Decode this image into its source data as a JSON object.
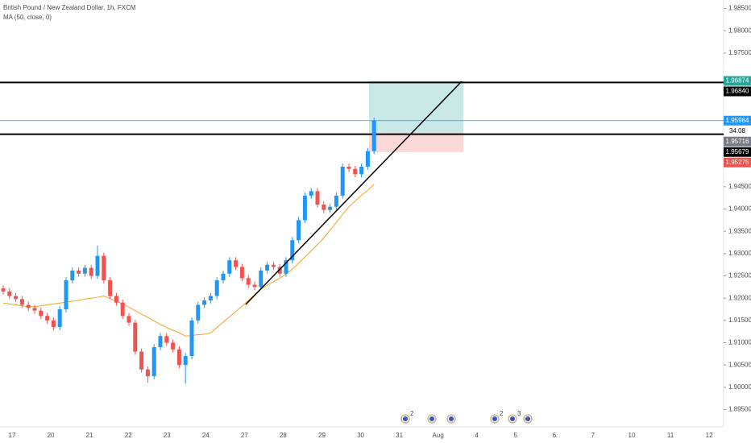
{
  "chart_data": {
    "type": "candlestick",
    "title": "British Pound / New Zealand Dollar, 1h, FXCM",
    "subtitle": "MA (50, close, 0)",
    "up_color": "#2196f3",
    "down_color": "#ef5350",
    "ylim": [
      1.8875,
      1.9869
    ],
    "yticks": [
      {
        "value": 1.985,
        "label": "1.98500"
      },
      {
        "value": 1.98,
        "label": "1.98000"
      },
      {
        "value": 1.975,
        "label": "1.97500"
      },
      {
        "value": 1.945,
        "label": "1.94500"
      },
      {
        "value": 1.94,
        "label": "1.94000"
      },
      {
        "value": 1.935,
        "label": "1.93500"
      },
      {
        "value": 1.93,
        "label": "1.93000"
      },
      {
        "value": 1.925,
        "label": "1.92500"
      },
      {
        "value": 1.92,
        "label": "1.92000"
      },
      {
        "value": 1.915,
        "label": "1.91500"
      },
      {
        "value": 1.91,
        "label": "1.91000"
      },
      {
        "value": 1.905,
        "label": "1.90500"
      },
      {
        "value": 1.9,
        "label": "1.90000"
      },
      {
        "value": 1.895,
        "label": "1.89500"
      }
    ],
    "x_labels": [
      "17",
      "20",
      "21",
      "22",
      "23",
      "24",
      "27",
      "28",
      "29",
      "30",
      "31",
      "Aug",
      "4",
      "5",
      "6",
      "7",
      "10",
      "11",
      "12"
    ],
    "open": [
      1.9222,
      1.9215,
      1.9205,
      1.9198,
      1.9185,
      1.9178,
      1.9172,
      1.916,
      1.915,
      1.9135,
      1.9175,
      1.924,
      1.9262,
      1.9255,
      1.9268,
      1.925,
      1.9295,
      1.924,
      1.9205,
      1.919,
      1.916,
      1.9145,
      1.908,
      1.904,
      1.9025,
      1.909,
      1.9115,
      1.91,
      1.9085,
      1.905,
      1.907,
      1.915,
      1.9185,
      1.9195,
      1.9205,
      1.924,
      1.9255,
      1.9285,
      1.927,
      1.9245,
      1.923,
      1.9225,
      1.9262,
      1.9275,
      1.927,
      1.9255,
      1.9285,
      1.933,
      1.9375,
      1.943,
      1.944,
      1.941,
      1.9398,
      1.9405,
      1.943,
      1.9495,
      1.949,
      1.9478,
      1.9495,
      1.953
    ],
    "high": [
      1.9229,
      1.9222,
      1.9212,
      1.9205,
      1.9192,
      1.9185,
      1.9179,
      1.9167,
      1.9157,
      1.9182,
      1.9247,
      1.9269,
      1.9269,
      1.9275,
      1.9275,
      1.9318,
      1.9302,
      1.9247,
      1.9212,
      1.9197,
      1.9167,
      1.9152,
      1.9087,
      1.9047,
      1.9097,
      1.9122,
      1.9122,
      1.9107,
      1.9092,
      1.9077,
      1.9157,
      1.9192,
      1.9202,
      1.9212,
      1.9247,
      1.9262,
      1.9292,
      1.9292,
      1.9277,
      1.9252,
      1.9237,
      1.9269,
      1.9282,
      1.9282,
      1.9277,
      1.9292,
      1.9337,
      1.9382,
      1.9437,
      1.9447,
      1.9447,
      1.9417,
      1.9412,
      1.9437,
      1.9502,
      1.9502,
      1.9497,
      1.9502,
      1.9537,
      1.9605
    ],
    "low": [
      1.9208,
      1.9198,
      1.9191,
      1.9178,
      1.9171,
      1.9165,
      1.9153,
      1.9143,
      1.9128,
      1.9128,
      1.9168,
      1.9233,
      1.9248,
      1.9248,
      1.9243,
      1.9243,
      1.9233,
      1.9198,
      1.9183,
      1.9153,
      1.9138,
      1.9073,
      1.9033,
      1.901,
      1.9018,
      1.9083,
      1.9093,
      1.9078,
      1.9043,
      1.9008,
      1.9063,
      1.9143,
      1.9178,
      1.9188,
      1.9198,
      1.9233,
      1.9248,
      1.9263,
      1.9238,
      1.9223,
      1.9218,
      1.9218,
      1.9255,
      1.9263,
      1.9248,
      1.9248,
      1.9278,
      1.9323,
      1.9368,
      1.9423,
      1.9403,
      1.9391,
      1.9391,
      1.9398,
      1.9423,
      1.9483,
      1.9471,
      1.9471,
      1.9488,
      1.9523
    ],
    "close": [
      1.9215,
      1.9205,
      1.9198,
      1.9185,
      1.9178,
      1.9172,
      1.916,
      1.915,
      1.9135,
      1.9175,
      1.924,
      1.9262,
      1.9255,
      1.9268,
      1.925,
      1.9295,
      1.924,
      1.9205,
      1.919,
      1.916,
      1.9145,
      1.908,
      1.904,
      1.9025,
      1.909,
      1.9115,
      1.91,
      1.9085,
      1.905,
      1.907,
      1.915,
      1.9185,
      1.9195,
      1.9205,
      1.924,
      1.9255,
      1.9285,
      1.927,
      1.9245,
      1.923,
      1.9225,
      1.9262,
      1.9275,
      1.927,
      1.9255,
      1.9285,
      1.933,
      1.9375,
      1.943,
      1.944,
      1.941,
      1.9398,
      1.9405,
      1.943,
      1.9495,
      1.949,
      1.9478,
      1.9495,
      1.953,
      1.9598
    ],
    "ma": {
      "color": "#f7a21b",
      "values": [
        1.9189,
        1.9187,
        1.9185,
        1.9183,
        1.9181,
        1.9181,
        1.9183,
        1.9185,
        1.9187,
        1.9189,
        1.9191,
        1.9193,
        1.9195,
        1.9198,
        1.92,
        1.9202,
        1.9205,
        1.9199,
        1.9193,
        1.9187,
        1.918,
        1.9172,
        1.9164,
        1.9157,
        1.9149,
        1.9141,
        1.9134,
        1.9128,
        1.9122,
        1.9115,
        1.9116,
        1.9118,
        1.9119,
        1.9122,
        1.9134,
        1.9146,
        1.9158,
        1.917,
        1.9182,
        1.9195,
        1.9208,
        1.922,
        1.9229,
        1.9237,
        1.9245,
        1.9254,
        1.9265,
        1.9279,
        1.9292,
        1.9306,
        1.932,
        1.9335,
        1.9353,
        1.937,
        1.9388,
        1.9405,
        1.9418,
        1.9431,
        1.9442,
        1.9455
      ]
    },
    "price_tags": [
      {
        "label": "1.96874",
        "value": 1.96874,
        "color": "#26a69a"
      },
      {
        "label": "1.96840",
        "value": 1.9684,
        "color": "#000000"
      },
      {
        "label": "1.95984",
        "value": 1.95984,
        "color": "#2196f3"
      },
      {
        "label": "34:08",
        "color": "#ffffff"
      },
      {
        "label": "1.95716",
        "value": 1.95716,
        "color": "#787b86"
      },
      {
        "label": "1.95679",
        "value": 1.95679,
        "color": "#000000"
      },
      {
        "label": "1.95275",
        "value": 1.95275,
        "color": "#ef5350"
      }
    ],
    "event_badges": [
      "2",
      "2",
      "3"
    ]
  }
}
